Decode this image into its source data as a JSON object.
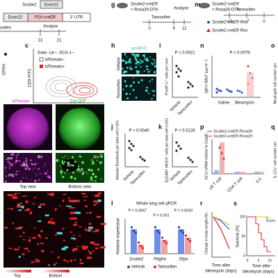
{
  "a": {
    "row1": [
      "Scube2",
      "Exon22"
    ],
    "row2": [
      "Exon22",
      "P2A-creER",
      "3′ UTR"
    ],
    "treatment": "oxifen",
    "analyse": "Analyse",
    "days": [
      "13",
      "21"
    ]
  },
  "b": {
    "xlabel": "GFRA"
  },
  "c": {
    "label": "c",
    "gate": "Gate: Lin−, SCA-1−",
    "legend": [
      "tdTomato−",
      "tdTomato+"
    ],
    "ylabel": "CD9-FITC",
    "xlabel": "PDGFRA-APC"
  },
  "g": {
    "label": "g",
    "mouse": [
      "Scube2-creER",
      "× Rosa26-DTA"
    ],
    "treatment": "Tamoxifen",
    "analyse": "Analyse",
    "days": [
      "0",
      "9",
      "12"
    ]
  },
  "m": {
    "label": "m",
    "mouse": [
      "Scube2-creER",
      "× Rosa26-DTA"
    ],
    "treatment": "Tamoxifen",
    "days": [
      "−21",
      "−7",
      "0"
    ]
  },
  "m_legend": [
    "Scube2-creER Ros",
    "Scube2-creER Ros"
  ],
  "h": {
    "label": "h",
    "stain": "proSP-C",
    "rows": [
      "Vehicle",
      "Tamoxifen"
    ]
  },
  "i": {
    "label": "i",
    "p": "P = 0.0021",
    "ylabel": "ProSP-C⁺ cells per mm²",
    "groups": [
      "Vehicle",
      "Tamoxifen"
    ]
  },
  "n": {
    "label": "n",
    "p": "P = 0.0079",
    "ylabel": "IgM in BALF (µg ml⁻¹)",
    "groups": [
      "Saline",
      "Bleomycin"
    ]
  },
  "o": {
    "label": "o",
    "ylabel": "Neutrophil cell number per"
  },
  "d": {
    "stains": [
      "tdTomato",
      "Col-GFP"
    ],
    "marks": [
      "aw",
      "bv",
      "cuff",
      "aw",
      "bv",
      "cuff",
      "aw"
    ],
    "views": [
      "Top view",
      "Bottom view"
    ],
    "depth": [
      "Top",
      "Bottom"
    ]
  },
  "j": {
    "label": "j",
    "p": "P = 0.0040",
    "ylabel": "Alveolar fibroblasts per total cell (×10²)",
    "groups": [
      "Vehicle",
      "Tamoxifen"
    ]
  },
  "k": {
    "label": "k",
    "p": "P = 0.0128",
    "ylabel": "EpCAM⁺ MHCII⁺ cells per total cell (×10²)",
    "groups": [
      "Vehicle",
      "Tamoxifen"
    ]
  },
  "p": {
    "label": "p",
    "legend": [
      "Scube2-creER Rosa26",
      "Scube2-creER Rosa26"
    ],
    "ylabel": "Il17a mRNA relative to Gapdh",
    "groups": [
      "γδ T cell",
      "CD4 T cell",
      "ILC"
    ]
  },
  "q": {
    "label": "q",
    "ylabel": "IL-17a⁺ cell number per"
  },
  "l": {
    "label": "l",
    "title": "Whole lung cell qPCR",
    "p": [
      "P = 0.0067",
      "P = 0.031",
      "P = 0.0020"
    ],
    "ylabel": "Relative expression",
    "genes": [
      "Scube2",
      "Pdgfra",
      "Sftpc"
    ],
    "legend": [
      "Vehicle",
      "Tamoxifen"
    ]
  },
  "r": {
    "label": "r",
    "ylabel": "Change in body weight (%)",
    "xlabel": [
      "Time after",
      "bleomycin (days)"
    ]
  },
  "s": {
    "label": "s",
    "ylabel": "Survival (%)",
    "yticks": [
      "100",
      "50",
      "0"
    ],
    "xticks": [
      "0",
      "5",
      "10"
    ],
    "xlabel": [
      "Time after",
      "bleomycin (days)"
    ]
  }
}
